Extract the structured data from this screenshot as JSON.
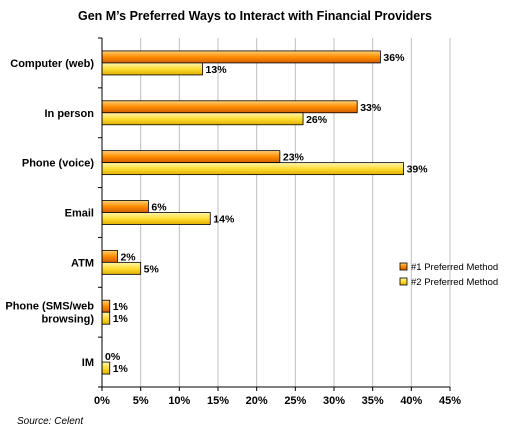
{
  "chart_data": {
    "type": "bar",
    "orientation": "horizontal",
    "title": "Gen M’s Preferred Ways to Interact with Financial Providers",
    "categories": [
      [
        "Computer (web)"
      ],
      [
        "In person"
      ],
      [
        "Phone (voice)"
      ],
      [
        "Email"
      ],
      [
        "ATM"
      ],
      [
        "Phone (SMS/web",
        "browsing)"
      ],
      [
        "IM"
      ]
    ],
    "series": [
      {
        "name": "#1 Preferred Method",
        "values": [
          36,
          33,
          23,
          6,
          2,
          1,
          0
        ],
        "color": "#ff8c00",
        "label_suffix": "%"
      },
      {
        "name": "#2 Preferred Method",
        "values": [
          13,
          26,
          39,
          14,
          5,
          1,
          1
        ],
        "color": "#ffdd33",
        "label_suffix": "%"
      }
    ],
    "xlim": [
      0,
      45
    ],
    "xticks": [
      "0%",
      "5%",
      "10%",
      "15%",
      "20%",
      "25%",
      "30%",
      "35%",
      "40%",
      "45%"
    ],
    "grid": true,
    "legend_position": "right"
  },
  "source": "Source: Celent"
}
